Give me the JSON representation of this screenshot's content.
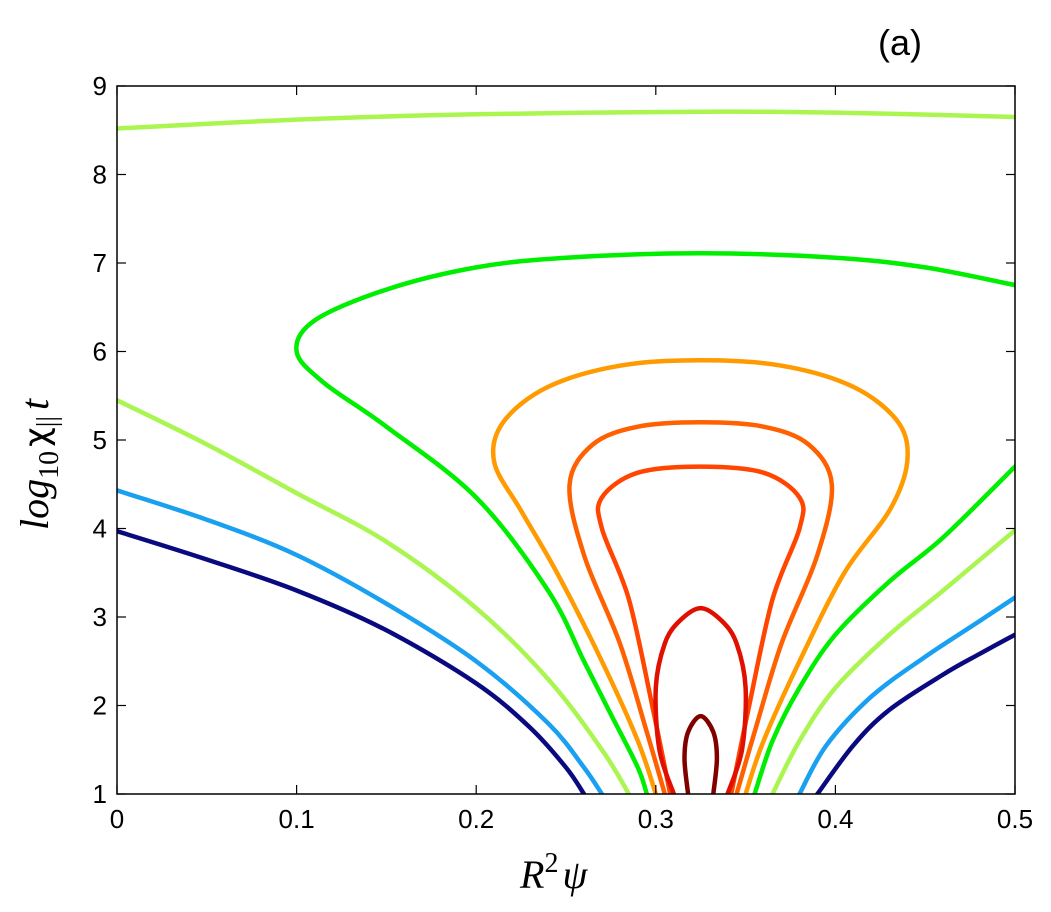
{
  "chart_data": {
    "type": "line",
    "title": "",
    "panel_label": "(a)",
    "xlabel": {
      "base": "R",
      "sup": "2",
      "tail": "ψ"
    },
    "ylabel": {
      "base": "log",
      "sub": "10",
      "mid": "χ",
      "sub2": "||",
      "tail": "t"
    },
    "xlim": [
      0,
      0.5
    ],
    "ylim": [
      1,
      9
    ],
    "xticks": [
      0,
      0.1,
      0.2,
      0.3,
      0.4,
      0.5
    ],
    "xtick_labels": [
      "0",
      "0.1",
      "0.2",
      "0.3",
      "0.4",
      "0.5"
    ],
    "yticks": [
      1,
      2,
      3,
      4,
      5,
      6,
      7,
      8,
      9
    ],
    "ytick_labels": [
      "1",
      "2",
      "3",
      "4",
      "5",
      "6",
      "7",
      "8",
      "9"
    ],
    "grid": false,
    "legend": "none",
    "series": [
      {
        "color": "#aaf550",
        "segments": [
          [
            [
              0,
              8.52
            ],
            [
              0.1,
              8.62
            ],
            [
              0.2,
              8.68
            ],
            [
              0.325,
              8.71
            ],
            [
              0.4,
              8.7
            ],
            [
              0.5,
              8.65
            ]
          ]
        ]
      },
      {
        "color": "#00ee00",
        "segments": [
          [
            [
              0.5,
              6.75
            ],
            [
              0.45,
              6.95
            ],
            [
              0.4,
              7.06
            ],
            [
              0.325,
              7.11
            ],
            [
              0.25,
              7.06
            ],
            [
              0.2,
              6.95
            ],
            [
              0.15,
              6.7
            ],
            [
              0.11,
              6.35
            ],
            [
              0.1,
              6.0
            ],
            [
              0.115,
              5.65
            ],
            [
              0.15,
              5.15
            ],
            [
              0.2,
              4.35
            ],
            [
              0.24,
              3.3
            ],
            [
              0.26,
              2.5
            ],
            [
              0.275,
              1.9
            ],
            [
              0.29,
              1.3
            ],
            [
              0.295,
              1.0
            ]
          ],
          [
            [
              0.355,
              1.0
            ],
            [
              0.365,
              1.6
            ],
            [
              0.38,
              2.2
            ],
            [
              0.4,
              2.8
            ],
            [
              0.43,
              3.4
            ],
            [
              0.46,
              3.9
            ],
            [
              0.5,
              4.7
            ]
          ]
        ]
      },
      {
        "color": "#aaf550",
        "segments": [
          [
            [
              0,
              5.45
            ],
            [
              0.05,
              4.95
            ],
            [
              0.1,
              4.4
            ],
            [
              0.15,
              3.85
            ],
            [
              0.2,
              3.1
            ],
            [
              0.24,
              2.3
            ],
            [
              0.27,
              1.5
            ],
            [
              0.285,
              1.0
            ]
          ],
          [
            [
              0.365,
              1.0
            ],
            [
              0.38,
              1.6
            ],
            [
              0.4,
              2.2
            ],
            [
              0.43,
              2.8
            ],
            [
              0.46,
              3.3
            ],
            [
              0.5,
              3.98
            ]
          ]
        ]
      },
      {
        "color": "#1aa0f0",
        "segments": [
          [
            [
              0,
              4.43
            ],
            [
              0.05,
              4.1
            ],
            [
              0.1,
              3.7
            ],
            [
              0.15,
              3.15
            ],
            [
              0.2,
              2.5
            ],
            [
              0.24,
              1.8
            ],
            [
              0.26,
              1.3
            ],
            [
              0.27,
              1.0
            ]
          ],
          [
            [
              0.38,
              1.0
            ],
            [
              0.395,
              1.55
            ],
            [
              0.42,
              2.1
            ],
            [
              0.45,
              2.55
            ],
            [
              0.48,
              2.95
            ],
            [
              0.5,
              3.22
            ]
          ]
        ]
      },
      {
        "color": "#0a0a80",
        "segments": [
          [
            [
              0,
              3.97
            ],
            [
              0.05,
              3.65
            ],
            [
              0.1,
              3.3
            ],
            [
              0.15,
              2.85
            ],
            [
              0.2,
              2.25
            ],
            [
              0.23,
              1.75
            ],
            [
              0.25,
              1.3
            ],
            [
              0.26,
              1.0
            ]
          ],
          [
            [
              0.39,
              1.0
            ],
            [
              0.41,
              1.55
            ],
            [
              0.43,
              1.95
            ],
            [
              0.46,
              2.35
            ],
            [
              0.48,
              2.58
            ],
            [
              0.5,
              2.8
            ]
          ]
        ]
      },
      {
        "color": "#ff9a00",
        "segments": [
          [
            [
              0.3,
              1.0
            ],
            [
              0.29,
              1.6
            ],
            [
              0.27,
              2.5
            ],
            [
              0.245,
              3.5
            ],
            [
              0.225,
              4.2
            ],
            [
              0.21,
              4.75
            ],
            [
              0.215,
              5.2
            ],
            [
              0.24,
              5.6
            ],
            [
              0.28,
              5.84
            ],
            [
              0.325,
              5.9
            ],
            [
              0.37,
              5.84
            ],
            [
              0.41,
              5.6
            ],
            [
              0.435,
              5.2
            ],
            [
              0.44,
              4.75
            ],
            [
              0.43,
              4.2
            ],
            [
              0.405,
              3.5
            ],
            [
              0.38,
              2.5
            ],
            [
              0.36,
              1.6
            ],
            [
              0.35,
              1.0
            ]
          ]
        ]
      },
      {
        "color": "#ff6000",
        "segments": [
          [
            [
              0.305,
              1.0
            ],
            [
              0.295,
              1.7
            ],
            [
              0.28,
              2.7
            ],
            [
              0.26,
              3.7
            ],
            [
              0.252,
              4.5
            ],
            [
              0.265,
              4.95
            ],
            [
              0.29,
              5.15
            ],
            [
              0.325,
              5.2
            ],
            [
              0.36,
              5.15
            ],
            [
              0.385,
              4.95
            ],
            [
              0.398,
              4.5
            ],
            [
              0.39,
              3.7
            ],
            [
              0.37,
              2.7
            ],
            [
              0.355,
              1.7
            ],
            [
              0.345,
              1.0
            ]
          ]
        ]
      },
      {
        "color": "#ff4500",
        "segments": [
          [
            [
              0.308,
              1.0
            ],
            [
              0.298,
              2.0
            ],
            [
              0.285,
              3.2
            ],
            [
              0.27,
              4.0
            ],
            [
              0.27,
              4.35
            ],
            [
              0.29,
              4.63
            ],
            [
              0.325,
              4.7
            ],
            [
              0.36,
              4.63
            ],
            [
              0.38,
              4.35
            ],
            [
              0.38,
              4.0
            ],
            [
              0.365,
              3.2
            ],
            [
              0.352,
              2.0
            ],
            [
              0.342,
              1.0
            ]
          ]
        ]
      },
      {
        "color": "#e01000",
        "segments": [
          [
            [
              0.31,
              1.0
            ],
            [
              0.302,
              1.5
            ],
            [
              0.3,
              2.2
            ],
            [
              0.305,
              2.7
            ],
            [
              0.313,
              2.95
            ],
            [
              0.325,
              3.1
            ],
            [
              0.337,
              2.95
            ],
            [
              0.345,
              2.7
            ],
            [
              0.35,
              2.2
            ],
            [
              0.348,
              1.5
            ],
            [
              0.34,
              1.0
            ]
          ]
        ]
      },
      {
        "color": "#800000",
        "segments": [
          [
            [
              0.318,
              1.0
            ],
            [
              0.316,
              1.4
            ],
            [
              0.318,
              1.7
            ],
            [
              0.325,
              1.88
            ],
            [
              0.332,
              1.7
            ],
            [
              0.334,
              1.4
            ],
            [
              0.332,
              1.0
            ]
          ]
        ]
      }
    ]
  }
}
